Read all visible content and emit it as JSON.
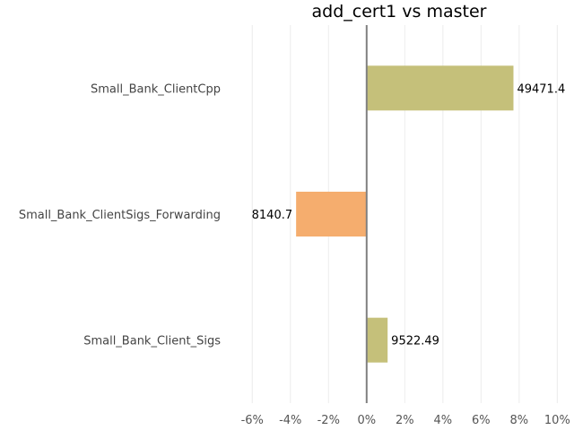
{
  "chart_data": {
    "type": "bar",
    "orientation": "horizontal",
    "title": "add_cert1 vs master",
    "categories": [
      "Small_Bank_ClientCpp",
      "Small_Bank_ClientSigs_Forwarding",
      "Small_Bank_Client_Sigs"
    ],
    "values": [
      7.7,
      -3.7,
      1.1
    ],
    "value_labels": [
      "49471.4",
      "8140.7",
      "9522.49"
    ],
    "bar_colors": [
      "#c5c07a",
      "#f5ad6e",
      "#c5c07a"
    ],
    "xlim": [
      -7,
      10.5
    ],
    "xticks": [
      -6,
      -4,
      -2,
      0,
      2,
      4,
      6,
      8,
      10
    ],
    "xtick_labels": [
      "-6%",
      "-4%",
      "-2%",
      "0%",
      "2%",
      "4%",
      "6%",
      "8%",
      "10%"
    ],
    "grid": true,
    "zero_line_color": "#808080",
    "xlabel": "",
    "ylabel": ""
  }
}
